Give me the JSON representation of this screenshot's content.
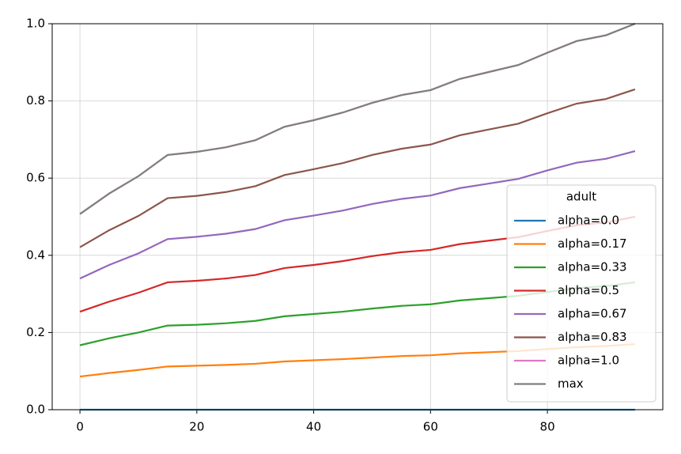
{
  "chart_data": {
    "type": "line",
    "x": [
      0,
      5,
      10,
      15,
      20,
      25,
      30,
      35,
      40,
      45,
      50,
      55,
      60,
      65,
      70,
      75,
      80,
      85,
      90,
      95
    ],
    "xlim": [
      -4.75,
      99.75
    ],
    "xticks": [
      0,
      20,
      40,
      60,
      80
    ],
    "ylim": [
      0,
      1
    ],
    "yticks": [
      {
        "value": 0,
        "label": "0.0"
      },
      0.2,
      0.4,
      0.6,
      0.8,
      {
        "value": 1,
        "label": "1.0"
      }
    ],
    "grid": true,
    "legend_title": "adult",
    "legend": "lower right",
    "series": [
      {
        "name": "alpha=0.0",
        "color": "#1f77b4",
        "values": [
          0,
          0,
          0,
          0,
          0,
          0,
          0,
          0,
          0,
          0,
          0,
          0,
          0,
          0,
          0,
          0,
          0,
          0,
          0,
          0
        ]
      },
      {
        "name": "alpha=0.17",
        "color": "#ff7f0e",
        "values": [
          0.086,
          0.095,
          0.103,
          0.112,
          0.114,
          0.116,
          0.119,
          0.125,
          0.128,
          0.131,
          0.135,
          0.139,
          0.141,
          0.146,
          0.149,
          0.152,
          0.157,
          0.162,
          0.165,
          0.17
        ]
      },
      {
        "name": "alpha=0.33",
        "color": "#2ca02c",
        "values": [
          0.167,
          0.185,
          0.2,
          0.218,
          0.22,
          0.224,
          0.23,
          0.242,
          0.248,
          0.254,
          0.262,
          0.269,
          0.273,
          0.283,
          0.289,
          0.295,
          0.305,
          0.315,
          0.32,
          0.33
        ]
      },
      {
        "name": "alpha=0.5",
        "color": "#d62728",
        "values": [
          0.254,
          0.28,
          0.303,
          0.33,
          0.334,
          0.34,
          0.349,
          0.367,
          0.375,
          0.385,
          0.398,
          0.408,
          0.414,
          0.429,
          0.438,
          0.447,
          0.463,
          0.478,
          0.485,
          0.5
        ]
      },
      {
        "name": "alpha=0.67",
        "color": "#9467bd",
        "values": [
          0.34,
          0.375,
          0.405,
          0.442,
          0.448,
          0.456,
          0.468,
          0.491,
          0.503,
          0.516,
          0.533,
          0.546,
          0.555,
          0.574,
          0.586,
          0.598,
          0.62,
          0.64,
          0.65,
          0.67
        ]
      },
      {
        "name": "alpha=0.83",
        "color": "#8c564b",
        "values": [
          0.421,
          0.465,
          0.502,
          0.548,
          0.554,
          0.564,
          0.579,
          0.608,
          0.623,
          0.639,
          0.66,
          0.676,
          0.687,
          0.711,
          0.726,
          0.741,
          0.768,
          0.793,
          0.805,
          0.83
        ]
      },
      {
        "name": "alpha=1.0",
        "color": "#e377c2",
        "values": [
          0.507,
          0.56,
          0.605,
          0.66,
          0.668,
          0.68,
          0.698,
          0.733,
          0.75,
          0.77,
          0.795,
          0.815,
          0.828,
          0.857,
          0.875,
          0.893,
          0.925,
          0.955,
          0.97,
          1.0
        ]
      },
      {
        "name": "max",
        "color": "#7f7f7f",
        "values": [
          0.507,
          0.56,
          0.605,
          0.66,
          0.668,
          0.68,
          0.698,
          0.733,
          0.75,
          0.77,
          0.795,
          0.815,
          0.828,
          0.857,
          0.875,
          0.893,
          0.925,
          0.955,
          0.97,
          1.0
        ]
      }
    ]
  }
}
